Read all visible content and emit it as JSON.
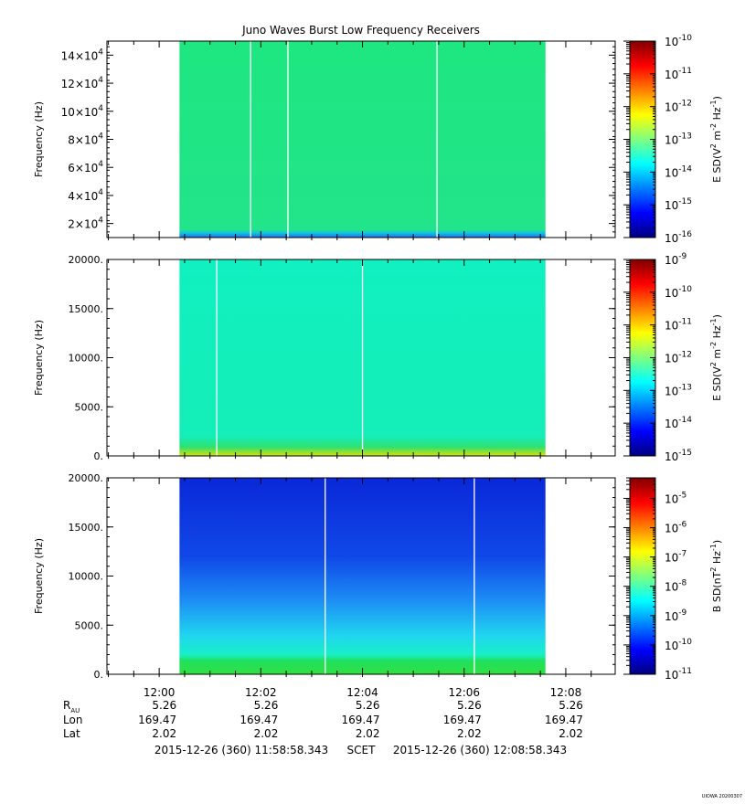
{
  "title": "Juno Waves Burst Low Frequency Receivers",
  "footer_id": "UIOWA 20200307",
  "chart_data": [
    {
      "type": "heatmap",
      "panel": 1,
      "ylabel": "Frequency (Hz)",
      "ylim": [
        10000,
        150000
      ],
      "y_ticks": [
        {
          "value": 20000,
          "mant": "2",
          "exp": "4"
        },
        {
          "value": 40000,
          "mant": "4",
          "exp": "4"
        },
        {
          "value": 60000,
          "mant": "6",
          "exp": "4"
        },
        {
          "value": 80000,
          "mant": "8",
          "exp": "4"
        },
        {
          "value": 100000,
          "mant": "10",
          "exp": "4"
        },
        {
          "value": 120000,
          "mant": "12",
          "exp": "4"
        },
        {
          "value": 140000,
          "mant": "14",
          "exp": "4"
        }
      ],
      "x_data_range": [
        "12:00:24",
        "12:07:36"
      ],
      "gap_times": [
        "12:01:48",
        "12:02:32",
        "12:05:28"
      ],
      "colorbar": {
        "label": "E SD (V² m⁻² Hz⁻¹)",
        "label_parts": [
          "E SD(V",
          "2",
          " m",
          "-2",
          " Hz",
          "-1",
          ")"
        ],
        "log_range": [
          -16,
          -10
        ],
        "tick_exps": [
          "-10",
          "-11",
          "-12",
          "-13",
          "-14",
          "-15",
          "-16"
        ]
      },
      "dominant_color": "#1ee680",
      "low_band_color": "#1d6ff0"
    },
    {
      "type": "heatmap",
      "panel": 2,
      "ylabel": "Frequency (Hz)",
      "ylim": [
        0,
        20000
      ],
      "y_ticks": [
        {
          "value": 0,
          "label": "0."
        },
        {
          "value": 5000,
          "label": "5000."
        },
        {
          "value": 10000,
          "label": "10000."
        },
        {
          "value": 15000,
          "label": "15000."
        },
        {
          "value": 20000,
          "label": "20000."
        }
      ],
      "x_data_range": [
        "12:00:24",
        "12:07:36"
      ],
      "gap_times": [
        "12:01:08",
        "12:04:00"
      ],
      "colorbar": {
        "label": "E SD (V² m⁻² Hz⁻¹)",
        "label_parts": [
          "E SD(V",
          "2",
          " m",
          "-2",
          " Hz",
          "-1",
          ")"
        ],
        "log_range": [
          -15,
          -9
        ],
        "tick_exps": [
          "-9",
          "-10",
          "-11",
          "-12",
          "-13",
          "-14",
          "-15"
        ]
      },
      "dominant_color": "#10f0c0",
      "low_band_color": "#9be22a"
    },
    {
      "type": "heatmap",
      "panel": 3,
      "ylabel": "Frequency (Hz)",
      "ylim": [
        0,
        20000
      ],
      "y_ticks": [
        {
          "value": 0,
          "label": "0."
        },
        {
          "value": 5000,
          "label": "5000."
        },
        {
          "value": 10000,
          "label": "10000."
        },
        {
          "value": 15000,
          "label": "15000."
        },
        {
          "value": 20000,
          "label": "20000."
        }
      ],
      "x_data_range": [
        "12:00:24",
        "12:07:36"
      ],
      "gap_times": [
        "12:03:16",
        "12:06:12"
      ],
      "colorbar": {
        "label": "B SD (nT² Hz⁻¹)",
        "label_parts": [
          "B SD(nT",
          "2",
          " Hz",
          "-1",
          ")"
        ],
        "log_range": [
          -11,
          -4.3
        ],
        "tick_exps": [
          "-5",
          "-6",
          "-7",
          "-8",
          "-9",
          "-10",
          "-11"
        ]
      },
      "dominant_color": "#1040e0",
      "low_band_color": "#20e060"
    }
  ],
  "x_axis": {
    "range": [
      "11:58:58.343",
      "12:08:58.343"
    ],
    "tick_labels": [
      "12:00",
      "12:02",
      "12:04",
      "12:06",
      "12:08"
    ]
  },
  "ephemeris": {
    "rows": [
      {
        "label": "R",
        "sub": "AU",
        "values": [
          "5.26",
          "5.26",
          "5.26",
          "5.26",
          "5.26"
        ]
      },
      {
        "label": "Lon",
        "values": [
          "169.47",
          "169.47",
          "169.47",
          "169.47",
          "169.47"
        ]
      },
      {
        "label": "Lat",
        "values": [
          "2.02",
          "2.02",
          "2.02",
          "2.02",
          "2.02"
        ]
      }
    ]
  },
  "time_range": {
    "start": "2015-12-26 (360) 11:58:58.343",
    "scet": "SCET",
    "end": "2015-12-26 (360) 12:08:58.343"
  }
}
